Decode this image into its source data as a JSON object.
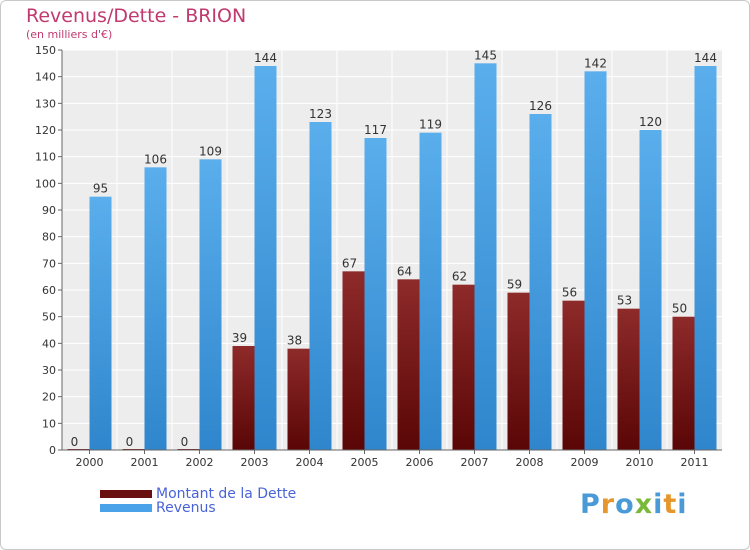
{
  "header": {
    "title": "Revenus/Dette - BRION",
    "subtitle": "(en milliers d'€)"
  },
  "chart_data": {
    "type": "bar",
    "title": "Revenus/Dette - BRION",
    "subtitle": "(en milliers d'€)",
    "categories": [
      "2000",
      "2001",
      "2002",
      "2003",
      "2004",
      "2005",
      "2006",
      "2007",
      "2008",
      "2009",
      "2010",
      "2011"
    ],
    "series": [
      {
        "name": "Montant de la Dette",
        "color": "#7a1a1a",
        "values": [
          0,
          0,
          0,
          39,
          38,
          67,
          64,
          62,
          59,
          56,
          53,
          50
        ]
      },
      {
        "name": "Revenus",
        "color": "#4aa3e8",
        "values": [
          95,
          106,
          109,
          144,
          123,
          117,
          119,
          145,
          126,
          142,
          120,
          144
        ]
      }
    ],
    "yticks": [
      "0",
      "10",
      "20",
      "30",
      "40",
      "50",
      "60",
      "70",
      "80",
      "90",
      "100",
      "110",
      "120",
      "130",
      "140",
      "150"
    ],
    "ylim": [
      0,
      150
    ],
    "grid": true,
    "legend_position": "bottom-left"
  },
  "legend": {
    "items": [
      {
        "label": "Montant de la Dette",
        "color": "#6a0f0f"
      },
      {
        "label": "Revenus",
        "color": "#4aa3e8"
      }
    ]
  },
  "logo": {
    "letters": [
      {
        "ch": "P",
        "color": "#4a9ad8"
      },
      {
        "ch": "r",
        "color": "#e6962a"
      },
      {
        "ch": "o",
        "color": "#4a9ad8"
      },
      {
        "ch": "x",
        "color": "#79b83a"
      },
      {
        "ch": "i",
        "color": "#4a9ad8"
      },
      {
        "ch": "t",
        "color": "#e6962a"
      },
      {
        "ch": "i",
        "color": "#4a9ad8"
      }
    ]
  }
}
